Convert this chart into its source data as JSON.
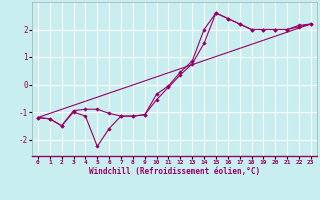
{
  "xlabel": "Windchill (Refroidissement éolien,°C)",
  "background_color": "#c8eef0",
  "grid_color": "#ffffff",
  "line_color": "#990066",
  "xlim": [
    -0.5,
    23.5
  ],
  "ylim": [
    -2.6,
    3.0
  ],
  "xticks": [
    0,
    1,
    2,
    3,
    4,
    5,
    6,
    7,
    8,
    9,
    10,
    11,
    12,
    13,
    14,
    15,
    16,
    17,
    18,
    19,
    20,
    21,
    22,
    23
  ],
  "yticks": [
    -2,
    -1,
    0,
    1,
    2
  ],
  "series1_x": [
    0,
    1,
    2,
    3,
    4,
    5,
    6,
    7,
    8,
    9,
    10,
    11,
    12,
    13,
    14,
    15,
    16,
    17,
    18,
    19,
    20,
    21,
    22,
    23
  ],
  "series1_y": [
    -1.2,
    -1.25,
    -1.5,
    -0.95,
    -0.9,
    -0.9,
    -1.05,
    -1.15,
    -1.15,
    -1.1,
    -0.35,
    -0.05,
    0.45,
    0.85,
    2.0,
    2.6,
    2.4,
    2.2,
    2.0,
    2.0,
    2.0,
    2.0,
    2.15,
    2.2
  ],
  "series2_x": [
    0,
    1,
    2,
    3,
    4,
    5,
    6,
    7,
    8,
    9,
    10,
    11,
    12,
    13,
    14,
    15,
    16,
    17,
    18,
    19,
    20,
    21,
    22,
    23
  ],
  "series2_y": [
    -1.2,
    -1.25,
    -1.5,
    -1.0,
    -1.15,
    -2.25,
    -1.6,
    -1.15,
    -1.15,
    -1.1,
    -0.55,
    -0.1,
    0.35,
    0.75,
    1.5,
    2.6,
    2.4,
    2.2,
    2.0,
    2.0,
    2.0,
    2.0,
    2.1,
    2.2
  ],
  "series3_x": [
    0,
    23
  ],
  "series3_y": [
    -1.2,
    2.2
  ]
}
